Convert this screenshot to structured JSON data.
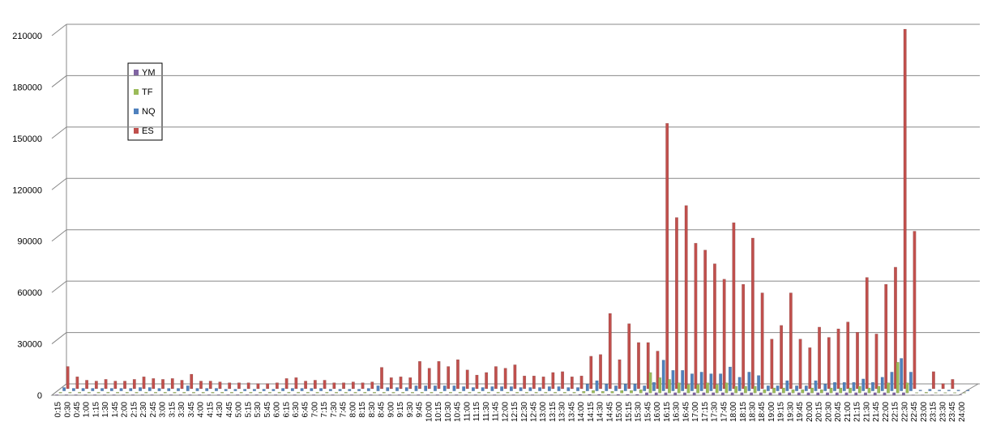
{
  "chart_data": {
    "type": "bar",
    "categories": [
      "0:15",
      "0:30",
      "0:45",
      "1:00",
      "1:15",
      "1:30",
      "1:45",
      "2:00",
      "2:15",
      "2:30",
      "2:45",
      "3:00",
      "3:15",
      "3:30",
      "3:45",
      "4:00",
      "4:15",
      "4:30",
      "4:45",
      "5:00",
      "5:15",
      "5:30",
      "5:45",
      "6:00",
      "6:15",
      "6:30",
      "6:45",
      "7:00",
      "7:15",
      "7:30",
      "7:45",
      "8:00",
      "8:15",
      "8:30",
      "8:45",
      "9:00",
      "9:15",
      "9:30",
      "9:45",
      "10:00",
      "10:15",
      "10:30",
      "10:45",
      "11:00",
      "11:15",
      "11:30",
      "11:45",
      "12:00",
      "12:15",
      "12:30",
      "12:45",
      "13:00",
      "13:15",
      "13:30",
      "13:45",
      "14:00",
      "14:15",
      "14:30",
      "14:45",
      "15:00",
      "15:15",
      "15:30",
      "15:45",
      "16:00",
      "16:15",
      "16:30",
      "16:45",
      "17:00",
      "17:15",
      "17:30",
      "17:45",
      "18:00",
      "18:15",
      "18:30",
      "18:45",
      "19:00",
      "19:15",
      "19:30",
      "19:45",
      "20:00",
      "20:15",
      "20:30",
      "20:45",
      "21:00",
      "21:15",
      "21:30",
      "21:45",
      "22:00",
      "22:15",
      "22:30",
      "22:45",
      "23:00",
      "23:15",
      "23:30",
      "23:45",
      "24:00"
    ],
    "series": [
      {
        "name": "YM",
        "color": "#8064a2",
        "values": [
          300,
          300,
          300,
          300,
          300,
          300,
          300,
          300,
          300,
          300,
          300,
          300,
          300,
          300,
          300,
          300,
          300,
          300,
          300,
          300,
          300,
          300,
          300,
          300,
          300,
          300,
          300,
          300,
          300,
          300,
          300,
          300,
          300,
          300,
          300,
          300,
          300,
          300,
          300,
          300,
          300,
          300,
          300,
          300,
          300,
          300,
          300,
          300,
          300,
          300,
          300,
          300,
          300,
          300,
          300,
          500,
          500,
          500,
          500,
          500,
          500,
          500,
          1500,
          1500,
          1500,
          1500,
          1500,
          1500,
          1500,
          1500,
          1500,
          1500,
          1500,
          1500,
          1500,
          1500,
          1500,
          1500,
          1500,
          1500,
          1500,
          1500,
          1500,
          1500,
          1500,
          1500,
          1500,
          1500,
          1500,
          1500,
          200,
          200,
          200,
          200,
          200,
          200
        ]
      },
      {
        "name": "TF",
        "color": "#9bbb59",
        "values": [
          500,
          500,
          500,
          500,
          500,
          500,
          500,
          500,
          500,
          500,
          500,
          500,
          500,
          500,
          500,
          500,
          500,
          500,
          500,
          500,
          500,
          500,
          500,
          500,
          500,
          500,
          500,
          500,
          500,
          500,
          500,
          500,
          500,
          500,
          500,
          500,
          500,
          500,
          500,
          500,
          500,
          500,
          500,
          500,
          500,
          500,
          500,
          500,
          500,
          500,
          500,
          500,
          500,
          500,
          500,
          1000,
          1500,
          1000,
          1000,
          1500,
          1500,
          2000,
          12000,
          9000,
          8000,
          6000,
          5000,
          5000,
          6000,
          5000,
          6000,
          4000,
          4000,
          4000,
          2000,
          3000,
          3000,
          2000,
          2000,
          3000,
          2000,
          3000,
          3000,
          3000,
          4000,
          3000,
          4000,
          6000,
          18000,
          6000,
          300,
          500,
          300,
          300,
          300,
          300
        ]
      },
      {
        "name": "NQ",
        "color": "#4f81bd",
        "values": [
          2000,
          1500,
          1500,
          1500,
          1500,
          1500,
          1500,
          1500,
          2000,
          2000,
          1500,
          1500,
          1500,
          3000,
          1500,
          1500,
          1500,
          1000,
          1000,
          1000,
          1000,
          1000,
          1000,
          1500,
          1500,
          1500,
          1500,
          1500,
          1000,
          1000,
          1000,
          1000,
          1500,
          3000,
          2000,
          2000,
          2000,
          3000,
          3000,
          3000,
          3000,
          3000,
          2500,
          2000,
          2000,
          2500,
          2500,
          2500,
          2000,
          2000,
          2000,
          2500,
          2500,
          2000,
          2000,
          4000,
          6000,
          4000,
          3000,
          4000,
          4000,
          3000,
          5000,
          18000,
          12000,
          12000,
          10000,
          11000,
          10000,
          10000,
          14000,
          8000,
          11000,
          9000,
          3000,
          3000,
          6000,
          3000,
          3000,
          6000,
          4000,
          5000,
          5000,
          5000,
          7000,
          5000,
          8000,
          11000,
          19000,
          11000,
          500,
          1000,
          500,
          500,
          500,
          500
        ]
      },
      {
        "name": "ES",
        "color": "#c0504d",
        "values": [
          13000,
          7000,
          5000,
          4500,
          5500,
          4500,
          4500,
          5500,
          7000,
          6000,
          5500,
          6000,
          5000,
          8500,
          4500,
          4500,
          4000,
          3500,
          3500,
          3500,
          3000,
          3000,
          3500,
          6000,
          6500,
          4500,
          5000,
          5000,
          3500,
          3500,
          4000,
          3500,
          4000,
          12500,
          6500,
          7000,
          6500,
          16000,
          12000,
          16000,
          13000,
          17000,
          11000,
          8000,
          9500,
          13000,
          12000,
          14000,
          7500,
          7500,
          7000,
          9500,
          10000,
          7000,
          7500,
          19000,
          20000,
          44000,
          17000,
          38000,
          27000,
          27000,
          22000,
          155000,
          100000,
          107000,
          85000,
          81000,
          73000,
          64000,
          97000,
          61000,
          88000,
          56000,
          29000,
          37000,
          56000,
          29000,
          24000,
          36000,
          30000,
          35000,
          39000,
          33000,
          65000,
          32000,
          61000,
          71000,
          210000,
          92000,
          0,
          10000,
          3000,
          5500,
          0,
          0
        ]
      }
    ],
    "ylim": [
      0,
      210000
    ],
    "yticks": [
      0,
      30000,
      60000,
      90000,
      120000,
      150000,
      180000,
      210000
    ],
    "grid": true
  }
}
